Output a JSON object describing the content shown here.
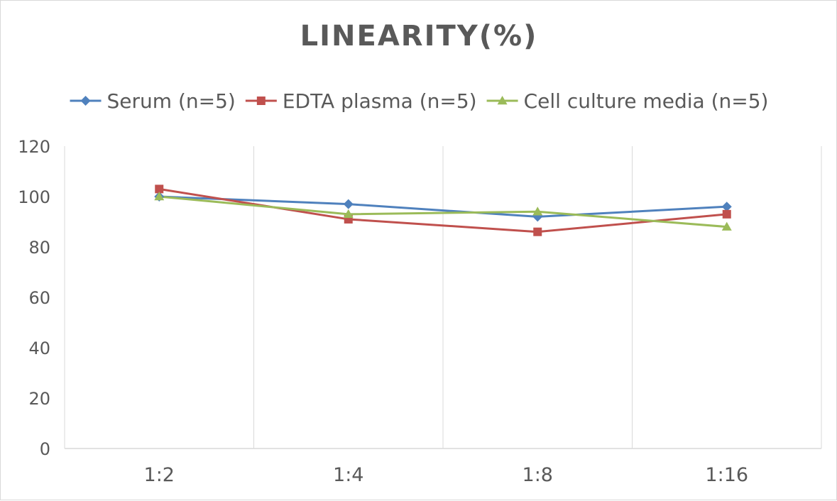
{
  "chart_data": {
    "type": "line",
    "title": "LINEARITY(%)",
    "xlabel": "",
    "ylabel": "",
    "categories": [
      "1:2",
      "1:4",
      "1:8",
      "1:16"
    ],
    "ylim": [
      0,
      120
    ],
    "yticks": [
      0,
      20,
      40,
      60,
      80,
      100,
      120
    ],
    "grid": "vertical",
    "legend": "top",
    "series": [
      {
        "name": "Serum (n=5)",
        "values": [
          100,
          97,
          92,
          96
        ],
        "color": "#4f81bd",
        "marker": "diamond"
      },
      {
        "name": "EDTA plasma (n=5)",
        "values": [
          103,
          91,
          86,
          93
        ],
        "color": "#c0504d",
        "marker": "square"
      },
      {
        "name": "Cell culture media (n=5)",
        "values": [
          100,
          93,
          94,
          88
        ],
        "color": "#9bbb59",
        "marker": "triangle"
      }
    ]
  }
}
